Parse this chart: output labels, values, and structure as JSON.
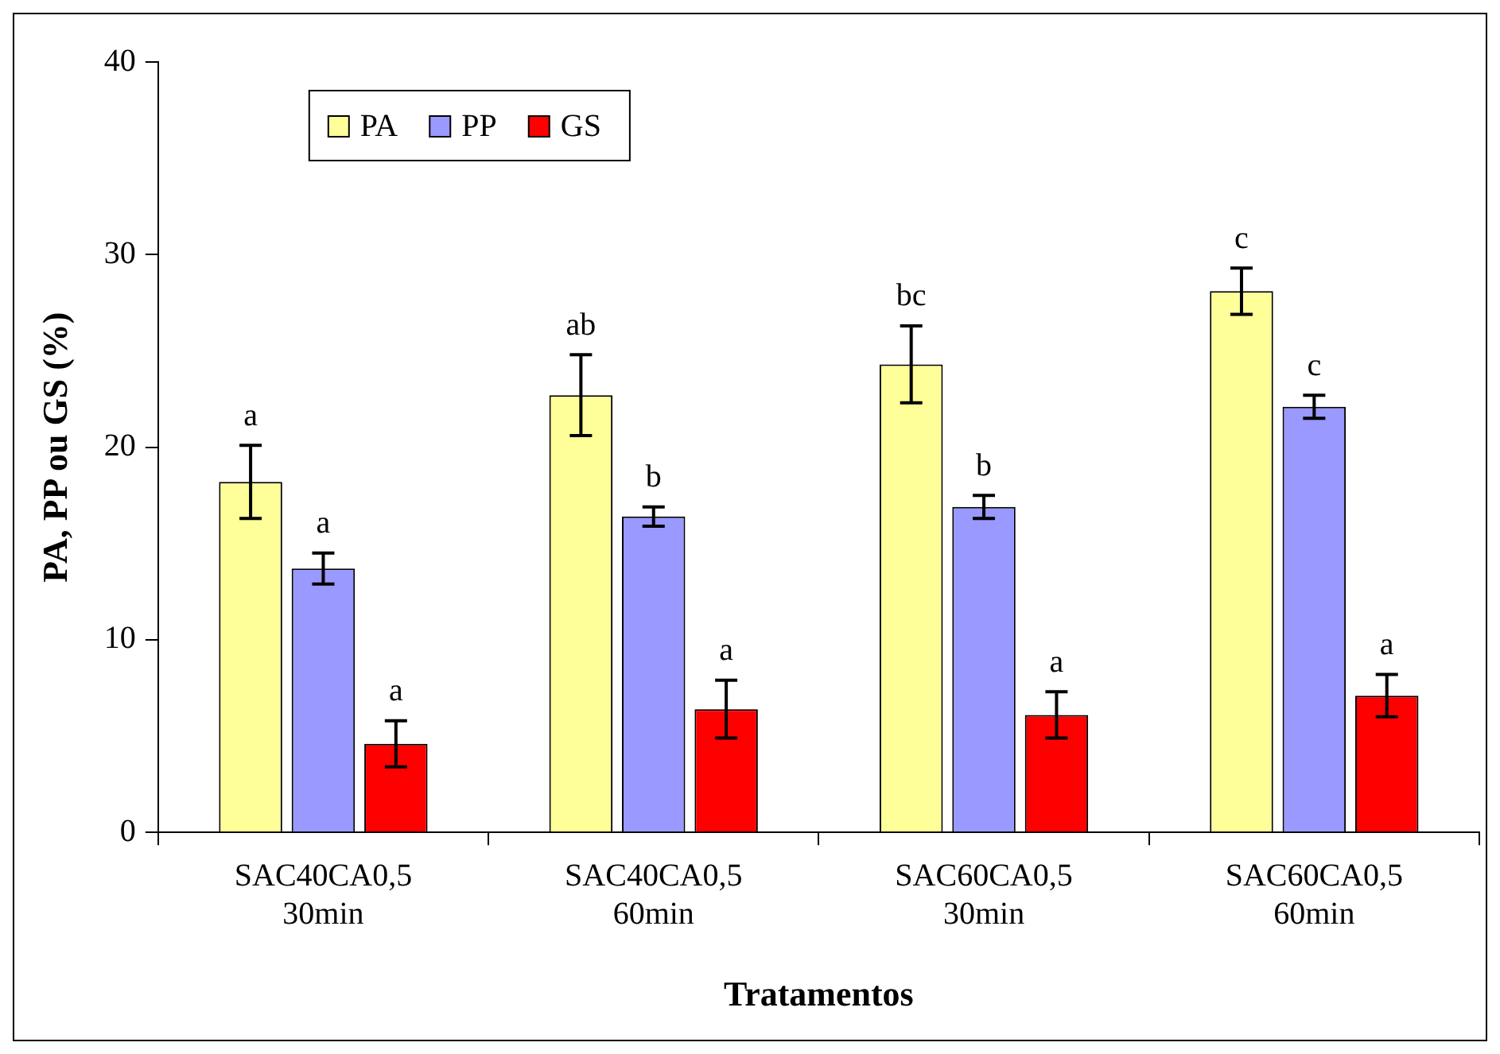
{
  "chart_data": {
    "type": "bar",
    "xlabel": "Tratamentos",
    "ylabel": "PA, PP ou GS (%)",
    "categories": [
      "SAC40CA0,5\n30min",
      "SAC40CA0,5\n60min",
      "SAC60CA0,5\n30min",
      "SAC60CA0,5\n60min"
    ],
    "series": [
      {
        "name": "PA",
        "color": "#ffff99",
        "values": [
          18.2,
          22.7,
          24.3,
          28.1
        ],
        "errors": [
          1.9,
          2.1,
          2.0,
          1.2
        ],
        "value_labels": [
          "a",
          "ab",
          "bc",
          "c"
        ]
      },
      {
        "name": "PP",
        "color": "#9999ff",
        "values": [
          13.7,
          16.4,
          16.9,
          22.1
        ],
        "errors": [
          0.8,
          0.5,
          0.6,
          0.6
        ],
        "value_labels": [
          "a",
          "b",
          "b",
          "c"
        ]
      },
      {
        "name": "GS",
        "color": "#ff0000",
        "values": [
          4.6,
          6.4,
          6.1,
          7.1
        ],
        "errors": [
          1.2,
          1.5,
          1.2,
          1.1
        ],
        "value_labels": [
          "a",
          "a",
          "a",
          "a"
        ]
      }
    ],
    "ylim": [
      0,
      40
    ],
    "yticks": [
      0,
      10,
      20,
      30,
      40
    ],
    "grid": false,
    "legend": "top left"
  }
}
